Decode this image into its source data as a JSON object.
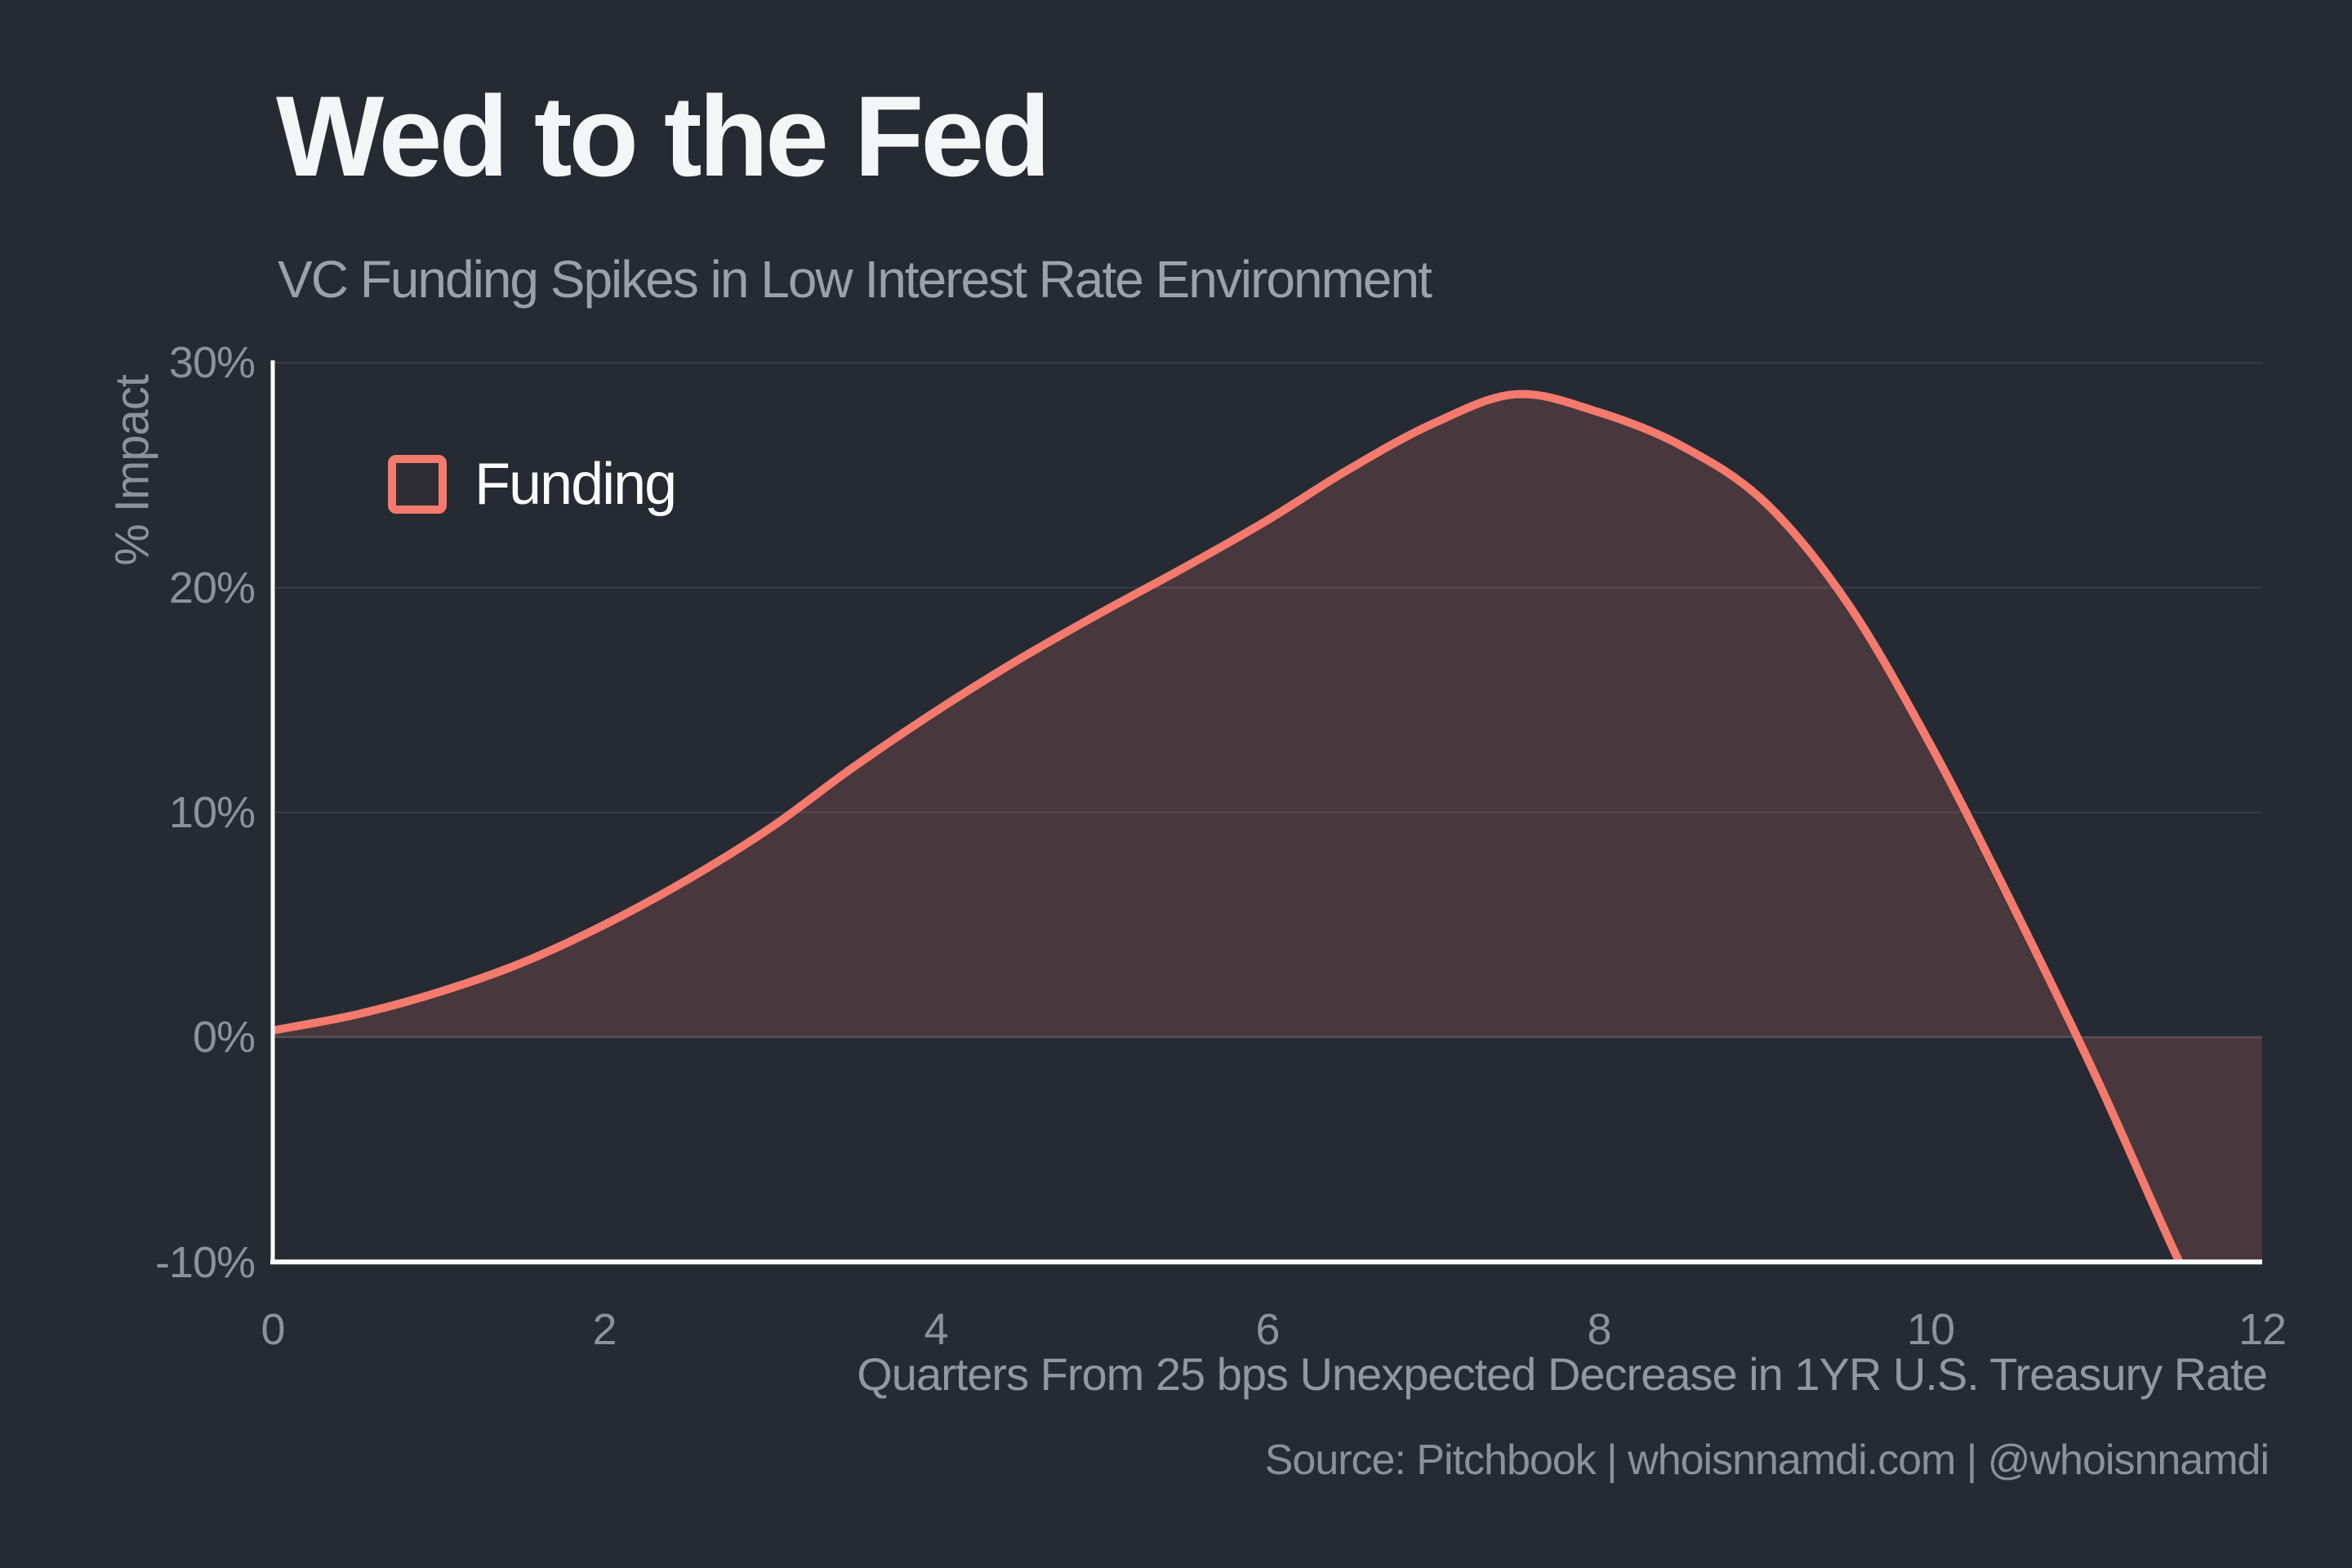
{
  "header": {
    "title": "Wed to the Fed",
    "subtitle": "VC Funding Spikes in Low Interest Rate Environment"
  },
  "legend": {
    "label": "Funding"
  },
  "axes": {
    "y_label": "% Impact",
    "y_ticks": [
      "30%",
      "20%",
      "10%",
      "0%",
      "-10%"
    ],
    "x_ticks": [
      "0",
      "2",
      "4",
      "6",
      "8",
      "10",
      "12"
    ],
    "x_label": "Quarters From 25 bps Unexpected Decrease in 1YR U.S. Treasury Rate"
  },
  "footer": {
    "source": "Source: Pitchbook | whoisnnamdi.com | @whoisnnamdi"
  },
  "colors": {
    "background": "#262a32",
    "accent_line": "#f47a6e",
    "area_fill": "rgba(244,122,110,0.17)",
    "axis_line": "#fdfdfd",
    "gridline": "#3a3e48",
    "zero_line": "#474b54",
    "tick_text": "#8d929a",
    "title_text": "#f4f5f6",
    "subtitle_text": "#9ba1a9"
  },
  "chart_data": {
    "type": "area",
    "title": "Wed to the Fed",
    "subtitle": "VC Funding Spikes in Low Interest Rate Environment",
    "xlabel": "Quarters From 25 bps Unexpected Decrease in 1YR U.S. Treasury Rate",
    "ylabel": "% Impact",
    "xlim": [
      0,
      12
    ],
    "ylim": [
      -10,
      30
    ],
    "x_tick_values": [
      0,
      2,
      4,
      6,
      8,
      10,
      12
    ],
    "y_tick_values": [
      30,
      20,
      10,
      0,
      -10
    ],
    "y_tick_format": "percent",
    "grid": "horizontal",
    "legend_position": "inside-top-left",
    "baseline": 0,
    "series": [
      {
        "name": "Funding",
        "x": [
          0,
          0.5,
          1,
          1.5,
          2,
          2.5,
          3,
          3.5,
          4,
          4.5,
          5,
          5.5,
          6,
          6.5,
          7,
          7.5,
          8,
          8.5,
          9,
          9.5,
          10,
          10.5,
          11,
          11.5,
          12
        ],
        "y": [
          0.3,
          1.0,
          2.0,
          3.3,
          5.0,
          7.0,
          9.3,
          12.0,
          14.5,
          16.8,
          18.9,
          20.9,
          23.0,
          25.3,
          27.3,
          28.6,
          27.8,
          26.3,
          23.8,
          19.3,
          13.0,
          5.8,
          -1.8,
          -10.0,
          -17.5
        ]
      }
    ],
    "peak": {
      "quarter": 7.4,
      "value_pct": 28.6
    },
    "zero_crossing_quarter": 10.9,
    "notes": "Smooth impulse-response style curve; area filled to zero baseline; curve clipped at -10% axis near quarter 11.5"
  }
}
